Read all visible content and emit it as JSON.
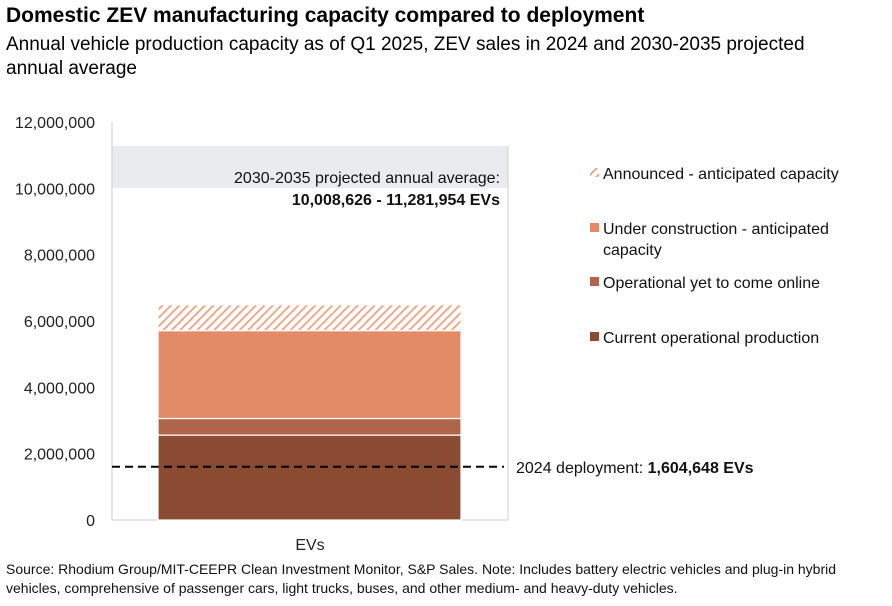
{
  "header": {
    "title": "Domestic ZEV manufacturing capacity compared to deployment",
    "subtitle": "Annual vehicle production capacity as of Q1 2025, ZEV sales in 2024 and 2030-2035 projected annual average"
  },
  "source_note": "Source: Rhodium Group/MIT-CEEPR Clean Investment Monitor, S&P Sales. Note: Includes battery electric vehicles and plug-in hybrid vehicles, comprehensive of passenger cars, light trucks, buses, and other medium- and heavy-duty vehicles.",
  "chart_data": {
    "type": "bar",
    "stacked": true,
    "categories": [
      "EVs"
    ],
    "ylim": [
      0,
      12000000
    ],
    "yticks": [
      0,
      2000000,
      4000000,
      6000000,
      8000000,
      10000000,
      12000000
    ],
    "ytick_labels": [
      "0",
      "2,000,000",
      "4,000,000",
      "6,000,000",
      "8,000,000",
      "10,000,000",
      "12,000,000"
    ],
    "series": [
      {
        "name": "Current operational production",
        "values": [
          2560000
        ],
        "color": "#8b4a32",
        "pattern": "solid"
      },
      {
        "name": "Operational yet to come online",
        "values": [
          500000
        ],
        "color": "#b0654b",
        "pattern": "solid"
      },
      {
        "name": "Under construction - anticipated capacity",
        "values": [
          2650000
        ],
        "color": "#e38a66",
        "pattern": "solid"
      },
      {
        "name": "Announced - anticipated capacity",
        "values": [
          780000
        ],
        "color": "#f0a080",
        "pattern": "hatched"
      }
    ],
    "legend_position": "right",
    "projection_band": {
      "low": 10008626,
      "high": 11281954,
      "color": "#e9ebee",
      "label_line1": "2030-2035 projected annual average:",
      "label_line2": "10,008,626 - 11,281,954 EVs"
    },
    "deployment_line": {
      "value": 1604648,
      "label_prefix": "2024 deployment: ",
      "label_value": "1,604,648 EVs"
    }
  }
}
